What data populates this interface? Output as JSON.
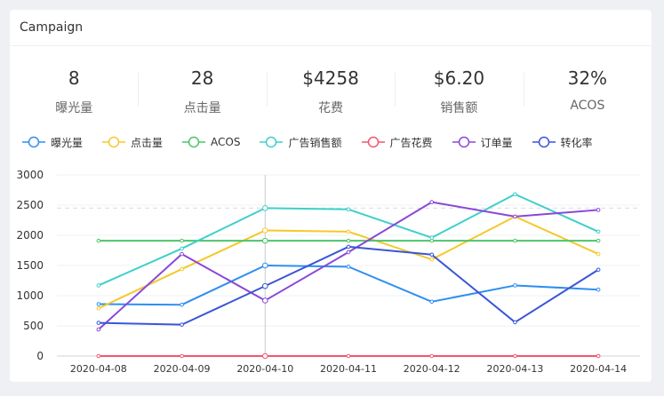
{
  "header": {
    "title": "Campaign"
  },
  "stats": [
    {
      "value": "8",
      "label": "曝光量"
    },
    {
      "value": "28",
      "label": "点击量"
    },
    {
      "value": "$4258",
      "label": "花费"
    },
    {
      "value": "$6.20",
      "label": "销售额"
    },
    {
      "value": "32%",
      "label": "ACOS"
    }
  ],
  "chart_data": {
    "type": "line",
    "categories": [
      "2020-04-08",
      "2020-04-09",
      "2020-04-10",
      "2020-04-11",
      "2020-04-12",
      "2020-04-13",
      "2020-04-14"
    ],
    "ylim": [
      0,
      3000
    ],
    "yticks": [
      "0",
      "500",
      "1000",
      "1500",
      "2000",
      "2500",
      "3000"
    ],
    "grid": true,
    "legend_position": "top-left",
    "series": [
      {
        "name": "曝光量",
        "color": "#2f8ef0",
        "values": [
          860,
          850,
          1500,
          1480,
          900,
          1170,
          1100
        ]
      },
      {
        "name": "点击量",
        "color": "#f5c92a",
        "values": [
          790,
          1440,
          2080,
          2060,
          1600,
          2310,
          1690
        ]
      },
      {
        "name": "ACOS",
        "color": "#4cc46a",
        "values": [
          1910,
          1910,
          1910,
          1910,
          1910,
          1910,
          1910
        ]
      },
      {
        "name": "广告销售额",
        "color": "#3ecfcb",
        "values": [
          1170,
          1780,
          2450,
          2430,
          1960,
          2680,
          2060
        ]
      },
      {
        "name": "广告花费",
        "color": "#f0566e",
        "values": [
          0,
          0,
          0,
          0,
          0,
          0,
          0
        ]
      },
      {
        "name": "订单量",
        "color": "#8a47d8",
        "values": [
          440,
          1690,
          920,
          1720,
          2550,
          2310,
          2420
        ]
      },
      {
        "name": "转化率",
        "color": "#3a55d6",
        "values": [
          550,
          520,
          1160,
          1810,
          1680,
          560,
          1430
        ]
      }
    ],
    "highlight_category": "2020-04-10",
    "reference_line": 2450
  }
}
